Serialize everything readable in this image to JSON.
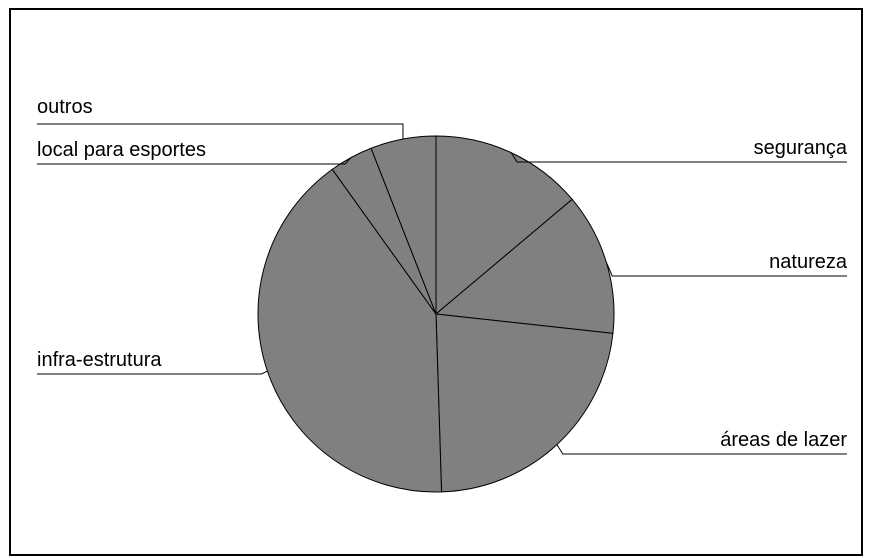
{
  "chart_data": {
    "type": "pie",
    "title": "",
    "categories": [
      "segurança",
      "natureza",
      "áreas de lazer",
      "infra-estrutura",
      "local para esportes",
      "outros"
    ],
    "values": [
      14,
      13,
      23,
      41,
      4,
      6
    ],
    "colors": {
      "slice_fill": "#808080",
      "slice_stroke": "#000000",
      "leader_line": "#000000",
      "frame_border": "#000000",
      "background": "#ffffff"
    },
    "start_angle_deg": 0,
    "direction": "clockwise",
    "labels_outside": true,
    "legend": "none",
    "grid": false
  }
}
